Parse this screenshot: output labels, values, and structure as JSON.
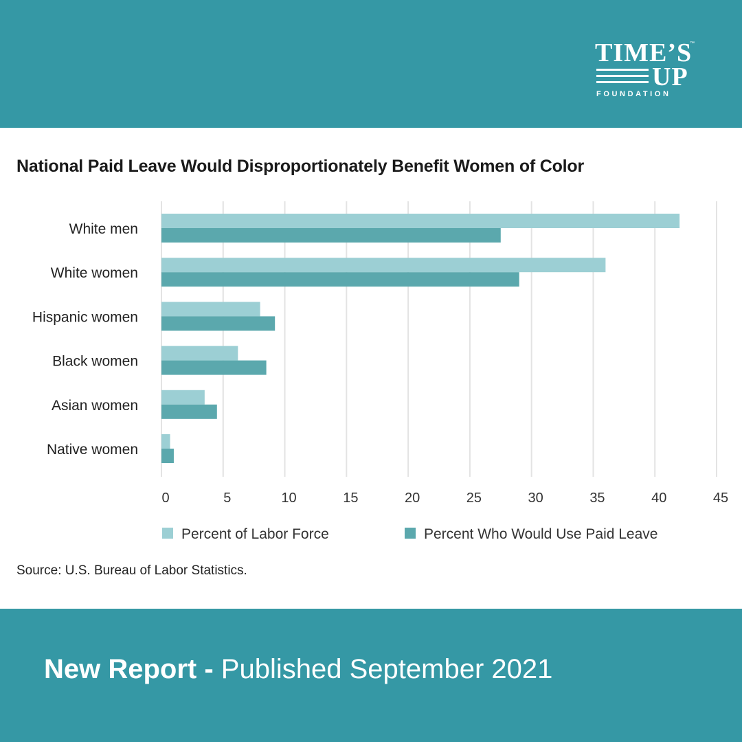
{
  "colors": {
    "band": "#3598a5",
    "light_series": "#9ccfd4",
    "dark_series": "#5ba8ad",
    "grid": "#e3e3e3",
    "text": "#333333"
  },
  "logo": {
    "line1": "TIME’S",
    "tm": "™",
    "line2": "UP",
    "line3": "FOUNDATION"
  },
  "footer": {
    "strong": "New Report -",
    "rest": " Published September 2021"
  },
  "source": "Source: U.S. Bureau of Labor Statistics.",
  "chart_data": {
    "type": "bar",
    "orientation": "horizontal",
    "title": "National Paid Leave Would Disproportionately Benefit Women of Color",
    "categories": [
      "White men",
      "White women",
      "Hispanic women",
      "Black women",
      "Asian women",
      "Native women"
    ],
    "series": [
      {
        "name": "Percent of Labor Force",
        "color": "#9ccfd4",
        "values": [
          42.0,
          36.0,
          8.0,
          6.2,
          3.5,
          0.7
        ]
      },
      {
        "name": "Percent Who Would Use Paid Leave",
        "color": "#5ba8ad",
        "values": [
          27.5,
          29.0,
          9.2,
          8.5,
          4.5,
          1.0
        ]
      }
    ],
    "xlim": [
      0,
      45
    ],
    "xticks": [
      0,
      5,
      10,
      15,
      20,
      25,
      30,
      35,
      40,
      45
    ],
    "grid": true,
    "legend_position": "bottom"
  }
}
